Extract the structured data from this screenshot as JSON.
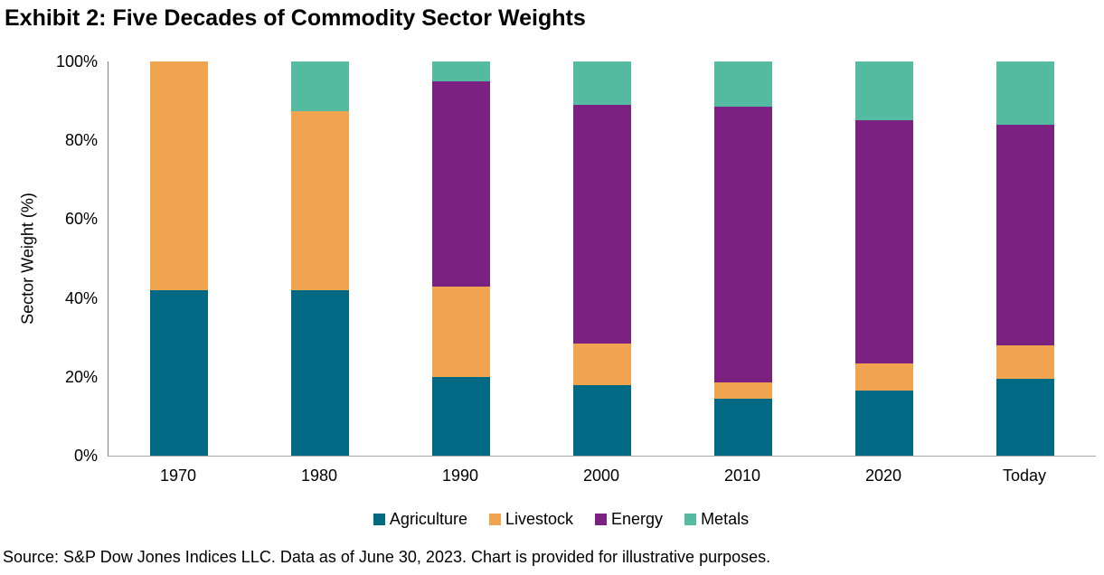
{
  "title": "Exhibit 2: Five Decades of Commodity Sector Weights",
  "source_note": "Source: S&P Dow Jones Indices LLC. Data as of June 30, 2023. Chart is provided for illustrative purposes.",
  "chart_data": {
    "type": "bar",
    "stacked": true,
    "title": "Exhibit 2: Five Decades of Commodity Sector Weights",
    "categories": [
      "1970",
      "1980",
      "1990",
      "2000",
      "2010",
      "2020",
      "Today"
    ],
    "series": [
      {
        "name": "Agriculture",
        "color": "#006A84",
        "values": [
          42,
          42,
          20,
          18,
          14.5,
          16.5,
          19.5
        ]
      },
      {
        "name": "Livestock",
        "color": "#F0A44F",
        "values": [
          58,
          45.5,
          23,
          10.5,
          4,
          7,
          8.5
        ]
      },
      {
        "name": "Energy",
        "color": "#7A2182",
        "values": [
          0,
          0,
          52,
          60.5,
          70,
          61.5,
          56
        ]
      },
      {
        "name": "Metals",
        "color": "#54BBA0",
        "values": [
          0,
          12.5,
          5,
          11,
          11.5,
          15,
          16
        ]
      }
    ],
    "xlabel": "",
    "ylabel": "Sector Weight (%)",
    "ylim": [
      0,
      100
    ],
    "y_ticks": [
      "0%",
      "20%",
      "40%",
      "60%",
      "80%",
      "100%"
    ],
    "grid": false,
    "legend_position": "bottom"
  }
}
